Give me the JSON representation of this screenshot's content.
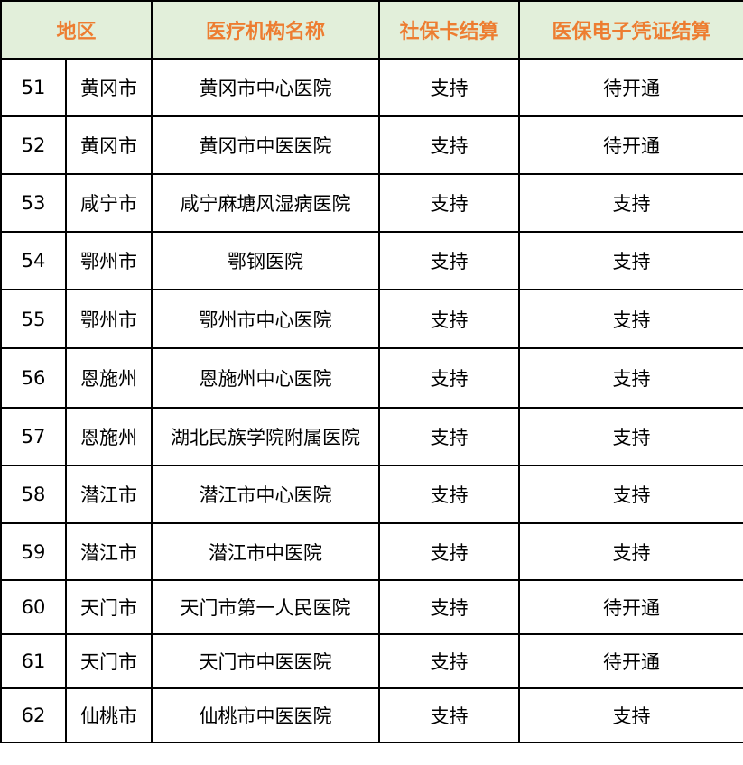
{
  "colors": {
    "header_bg": "#e2efda",
    "header_text": "#ed7d31"
  },
  "headers": [
    "地区",
    "医疗机构名称",
    "社保卡结算",
    "医保电子凭证结算"
  ],
  "rows": [
    {
      "no": "51",
      "region": "黄冈市",
      "name": "黄冈市中心医院",
      "card": "支持",
      "ecert": "待开通"
    },
    {
      "no": "52",
      "region": "黄冈市",
      "name": "黄冈市中医医院",
      "card": "支持",
      "ecert": "待开通"
    },
    {
      "no": "53",
      "region": "咸宁市",
      "name": "咸宁麻塘风湿病医院",
      "card": "支持",
      "ecert": "支持"
    },
    {
      "no": "54",
      "region": "鄂州市",
      "name": "鄂钢医院",
      "card": "支持",
      "ecert": "支持"
    },
    {
      "no": "55",
      "region": "鄂州市",
      "name": "鄂州市中心医院",
      "card": "支持",
      "ecert": "支持"
    },
    {
      "no": "56",
      "region": "恩施州",
      "name": "恩施州中心医院",
      "card": "支持",
      "ecert": "支持"
    },
    {
      "no": "57",
      "region": "恩施州",
      "name": "湖北民族学院附属医院",
      "card": "支持",
      "ecert": "支持"
    },
    {
      "no": "58",
      "region": "潜江市",
      "name": "潜江市中心医院",
      "card": "支持",
      "ecert": "支持"
    },
    {
      "no": "59",
      "region": "潜江市",
      "name": "潜江市中医院",
      "card": "支持",
      "ecert": "支持"
    },
    {
      "no": "60",
      "region": "天门市",
      "name": "天门市第一人民医院",
      "card": "支持",
      "ecert": "待开通"
    },
    {
      "no": "61",
      "region": "天门市",
      "name": "天门市中医医院",
      "card": "支持",
      "ecert": "待开通"
    },
    {
      "no": "62",
      "region": "仙桃市",
      "name": "仙桃市中医医院",
      "card": "支持",
      "ecert": "支持"
    }
  ]
}
